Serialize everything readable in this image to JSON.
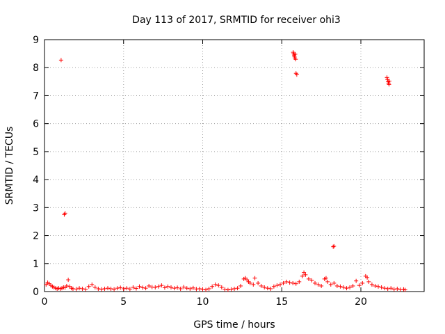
{
  "chart_data": {
    "type": "scatter",
    "title": "Day 113 of 2017, SRMTID for receiver ohi3",
    "xlabel": "GPS time / hours",
    "ylabel": "SRMTID / TECUs",
    "xlim": [
      0,
      24
    ],
    "ylim": [
      0,
      9
    ],
    "x_ticks": [
      0,
      5,
      10,
      15,
      20
    ],
    "y_ticks": [
      0,
      1,
      2,
      3,
      4,
      5,
      6,
      7,
      8,
      9
    ],
    "grid": true,
    "marker": "+",
    "color": "#ff0000",
    "series": [
      {
        "name": "ohi3",
        "points": [
          [
            0.1,
            0.25
          ],
          [
            0.2,
            0.32
          ],
          [
            0.3,
            0.28
          ],
          [
            0.4,
            0.22
          ],
          [
            0.5,
            0.18
          ],
          [
            0.6,
            0.15
          ],
          [
            0.7,
            0.12
          ],
          [
            0.8,
            0.1
          ],
          [
            0.9,
            0.12
          ],
          [
            1.0,
            0.1
          ],
          [
            1.1,
            0.12
          ],
          [
            1.2,
            0.15
          ],
          [
            1.3,
            0.14
          ],
          [
            1.4,
            0.2
          ],
          [
            1.5,
            0.42
          ],
          [
            1.6,
            0.18
          ],
          [
            1.7,
            0.12
          ],
          [
            1.8,
            0.1
          ],
          [
            2.0,
            0.09
          ],
          [
            2.2,
            0.12
          ],
          [
            2.4,
            0.1
          ],
          [
            2.6,
            0.08
          ],
          [
            2.8,
            0.18
          ],
          [
            3.0,
            0.25
          ],
          [
            3.2,
            0.15
          ],
          [
            3.4,
            0.1
          ],
          [
            3.6,
            0.08
          ],
          [
            3.8,
            0.1
          ],
          [
            4.0,
            0.12
          ],
          [
            4.2,
            0.1
          ],
          [
            4.4,
            0.08
          ],
          [
            4.6,
            0.12
          ],
          [
            4.8,
            0.14
          ],
          [
            5.0,
            0.1
          ],
          [
            5.2,
            0.12
          ],
          [
            5.4,
            0.09
          ],
          [
            5.6,
            0.15
          ],
          [
            5.8,
            0.11
          ],
          [
            6.0,
            0.18
          ],
          [
            6.2,
            0.14
          ],
          [
            6.4,
            0.12
          ],
          [
            6.6,
            0.2
          ],
          [
            6.8,
            0.16
          ],
          [
            7.0,
            0.15
          ],
          [
            7.2,
            0.18
          ],
          [
            7.4,
            0.22
          ],
          [
            7.6,
            0.14
          ],
          [
            7.8,
            0.18
          ],
          [
            8.0,
            0.15
          ],
          [
            8.2,
            0.12
          ],
          [
            8.4,
            0.14
          ],
          [
            8.6,
            0.1
          ],
          [
            8.8,
            0.16
          ],
          [
            9.0,
            0.12
          ],
          [
            9.2,
            0.1
          ],
          [
            9.4,
            0.13
          ],
          [
            9.6,
            0.09
          ],
          [
            9.8,
            0.1
          ],
          [
            10.0,
            0.08
          ],
          [
            10.2,
            0.06
          ],
          [
            10.4,
            0.1
          ],
          [
            10.6,
            0.18
          ],
          [
            10.8,
            0.25
          ],
          [
            11.0,
            0.22
          ],
          [
            11.2,
            0.15
          ],
          [
            11.4,
            0.08
          ],
          [
            11.6,
            0.06
          ],
          [
            11.8,
            0.08
          ],
          [
            12.0,
            0.1
          ],
          [
            12.2,
            0.12
          ],
          [
            12.4,
            0.2
          ],
          [
            12.6,
            0.45
          ],
          [
            12.7,
            0.48
          ],
          [
            12.8,
            0.42
          ],
          [
            12.9,
            0.35
          ],
          [
            13.0,
            0.3
          ],
          [
            13.2,
            0.25
          ],
          [
            13.3,
            0.48
          ],
          [
            13.5,
            0.3
          ],
          [
            13.7,
            0.2
          ],
          [
            13.9,
            0.15
          ],
          [
            14.1,
            0.12
          ],
          [
            14.3,
            0.1
          ],
          [
            14.5,
            0.18
          ],
          [
            14.7,
            0.22
          ],
          [
            14.9,
            0.25
          ],
          [
            15.1,
            0.3
          ],
          [
            15.3,
            0.35
          ],
          [
            15.5,
            0.32
          ],
          [
            15.7,
            0.3
          ],
          [
            15.9,
            0.28
          ],
          [
            16.1,
            0.35
          ],
          [
            16.3,
            0.55
          ],
          [
            16.4,
            0.68
          ],
          [
            16.5,
            0.6
          ],
          [
            16.7,
            0.45
          ],
          [
            16.9,
            0.4
          ],
          [
            17.1,
            0.3
          ],
          [
            17.3,
            0.25
          ],
          [
            17.5,
            0.2
          ],
          [
            17.7,
            0.45
          ],
          [
            17.8,
            0.48
          ],
          [
            17.9,
            0.35
          ],
          [
            18.1,
            0.25
          ],
          [
            18.3,
            0.3
          ],
          [
            18.5,
            0.2
          ],
          [
            18.7,
            0.18
          ],
          [
            18.9,
            0.15
          ],
          [
            19.1,
            0.12
          ],
          [
            19.3,
            0.15
          ],
          [
            19.5,
            0.2
          ],
          [
            19.7,
            0.38
          ],
          [
            19.9,
            0.22
          ],
          [
            20.1,
            0.3
          ],
          [
            20.3,
            0.55
          ],
          [
            20.4,
            0.5
          ],
          [
            20.5,
            0.35
          ],
          [
            20.7,
            0.25
          ],
          [
            20.9,
            0.2
          ],
          [
            21.1,
            0.18
          ],
          [
            21.3,
            0.15
          ],
          [
            21.5,
            0.12
          ],
          [
            21.7,
            0.1
          ],
          [
            21.9,
            0.12
          ],
          [
            22.1,
            0.08
          ],
          [
            22.3,
            0.1
          ],
          [
            22.5,
            0.07
          ],
          [
            22.7,
            0.08
          ],
          [
            22.8,
            0.06
          ],
          [
            1.05,
            8.27
          ],
          [
            1.25,
            2.75
          ],
          [
            1.3,
            2.8
          ],
          [
            15.72,
            8.55
          ],
          [
            15.75,
            8.5
          ],
          [
            15.78,
            8.45
          ],
          [
            15.8,
            8.4
          ],
          [
            15.82,
            8.35
          ],
          [
            15.85,
            8.48
          ],
          [
            15.88,
            8.3
          ],
          [
            15.9,
            7.8
          ],
          [
            15.95,
            7.75
          ],
          [
            18.25,
            1.6
          ],
          [
            18.3,
            1.62
          ],
          [
            21.65,
            7.65
          ],
          [
            21.68,
            7.58
          ],
          [
            21.72,
            7.5
          ],
          [
            21.75,
            7.45
          ],
          [
            21.78,
            7.4
          ],
          [
            21.8,
            7.52
          ]
        ]
      }
    ]
  }
}
